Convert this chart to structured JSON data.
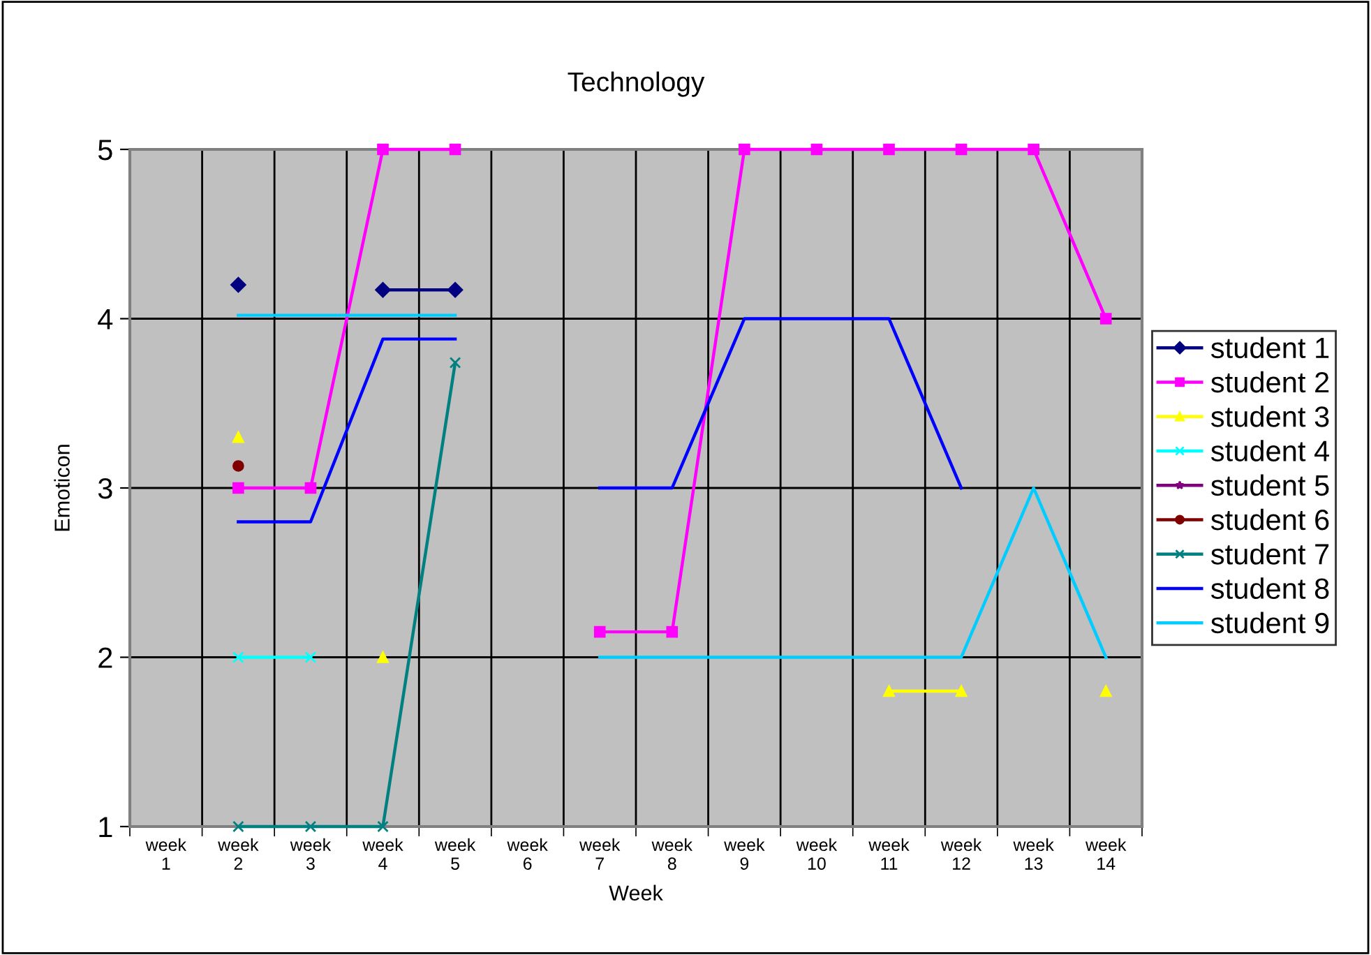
{
  "chart_data": {
    "type": "line",
    "title": "Technology",
    "xlabel": "Week",
    "ylabel": "Emoticon",
    "categories": [
      "week\n1",
      "week\n2",
      "week\n3",
      "week\n4",
      "week\n5",
      "week\n6",
      "week\n7",
      "week\n8",
      "week\n9",
      "week\n10",
      "week\n11",
      "week\n12",
      "week\n13",
      "week\n14"
    ],
    "ylim": [
      1,
      5
    ],
    "yticks": [
      1,
      2,
      3,
      4,
      5
    ],
    "grid": true,
    "legend": "right",
    "series": [
      {
        "name": "student 1",
        "color": "#000080",
        "marker": "diamond",
        "values": [
          null,
          4.2,
          null,
          4.17,
          4.17,
          null,
          null,
          null,
          null,
          null,
          null,
          null,
          null,
          null
        ]
      },
      {
        "name": "student 2",
        "color": "#ff00ff",
        "marker": "square",
        "values": [
          null,
          3,
          3,
          5,
          5,
          null,
          2.15,
          2.15,
          5,
          5,
          5,
          5,
          5,
          4
        ]
      },
      {
        "name": "student 3",
        "color": "#ffff00",
        "marker": "triangle",
        "values": [
          null,
          3.3,
          null,
          2,
          null,
          null,
          null,
          null,
          null,
          null,
          1.8,
          1.8,
          null,
          1.8
        ]
      },
      {
        "name": "student 4",
        "color": "#00ffff",
        "marker": "cross",
        "values": [
          null,
          2,
          2,
          null,
          null,
          null,
          null,
          null,
          null,
          null,
          null,
          null,
          null,
          null
        ]
      },
      {
        "name": "student 5",
        "color": "#800080",
        "marker": "star",
        "values": [
          null,
          null,
          null,
          null,
          null,
          null,
          null,
          null,
          null,
          null,
          null,
          null,
          null,
          null
        ]
      },
      {
        "name": "student 6",
        "color": "#800000",
        "marker": "circle",
        "values": [
          null,
          3.13,
          null,
          null,
          null,
          null,
          null,
          null,
          null,
          null,
          null,
          null,
          null,
          null
        ]
      },
      {
        "name": "student 7",
        "color": "#008080",
        "marker": "cross",
        "values": [
          null,
          1,
          1,
          1,
          3.74,
          null,
          null,
          null,
          null,
          null,
          null,
          null,
          null,
          null
        ]
      },
      {
        "name": "student 8",
        "color": "#0000ff",
        "marker": "none",
        "values": [
          null,
          2.8,
          2.8,
          3.88,
          3.88,
          null,
          3,
          3,
          4,
          4,
          4,
          3,
          null,
          null
        ]
      },
      {
        "name": "student 9",
        "color": "#00ccff",
        "marker": "none",
        "values": [
          null,
          4.02,
          4.02,
          4.02,
          4.02,
          null,
          2,
          2,
          2,
          2,
          2,
          2,
          3,
          2
        ]
      }
    ]
  }
}
